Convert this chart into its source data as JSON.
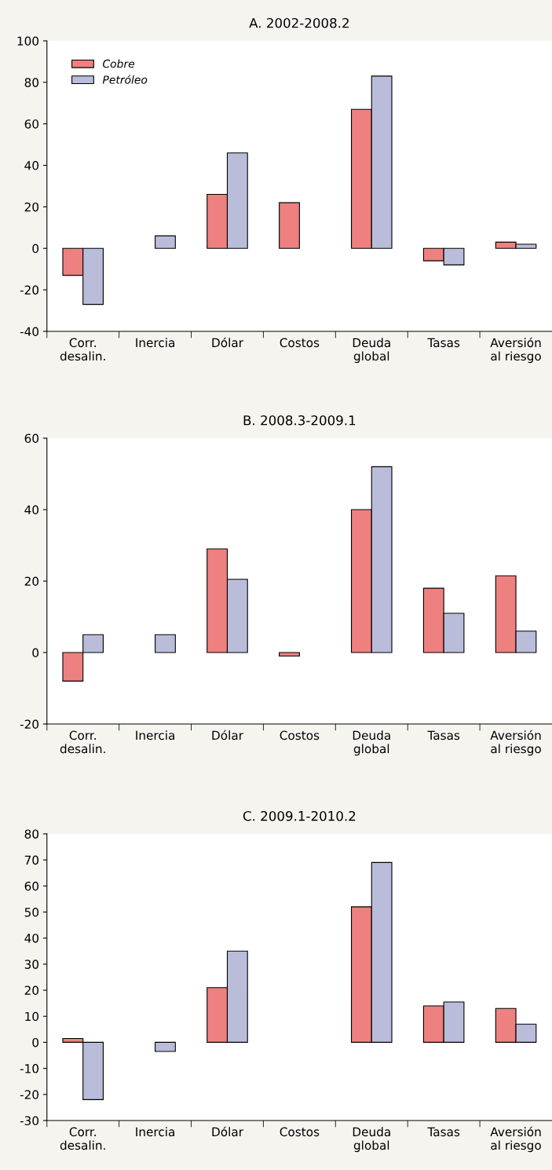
{
  "chart_data": [
    {
      "type": "bar",
      "title": "A. 2002-2008.2",
      "categories": [
        "Corr.\ndesalin.",
        "Inercia",
        "Dólar",
        "Costos",
        "Deuda\nglobal",
        "Tasas",
        "Aversión\nal riesgo"
      ],
      "series": [
        {
          "name": "Cobre",
          "color": "#ee8080",
          "values": [
            -13,
            null,
            26,
            22,
            67,
            -6,
            3
          ]
        },
        {
          "name": "Petróleo",
          "color": "#babdd9",
          "values": [
            -27,
            6,
            46,
            null,
            83,
            -8,
            2
          ]
        }
      ],
      "ylim": [
        -40,
        100
      ],
      "yticks": [
        -40,
        -20,
        0,
        20,
        40,
        60,
        80,
        100
      ],
      "legend": "top left",
      "grid": false
    },
    {
      "type": "bar",
      "title": "B. 2008.3-2009.1",
      "categories": [
        "Corr.\ndesalin.",
        "Inercia",
        "Dólar",
        "Costos",
        "Deuda\nglobal",
        "Tasas",
        "Aversión\nal riesgo"
      ],
      "series": [
        {
          "color": "#ee8080",
          "values": [
            -8,
            null,
            29,
            -1,
            40,
            18,
            21.5
          ]
        },
        {
          "color": "#babdd9",
          "values": [
            5,
            5,
            20.5,
            null,
            52,
            11,
            6
          ]
        }
      ],
      "ylim": [
        -20,
        60
      ],
      "yticks": [
        -20,
        0,
        20,
        40,
        60
      ],
      "legend": false,
      "grid": false
    },
    {
      "type": "bar",
      "title": "C. 2009.1-2010.2",
      "categories": [
        "Corr.\ndesalin.",
        "Inercia",
        "Dólar",
        "Costos",
        "Deuda\nglobal",
        "Tasas",
        "Aversión\nal riesgo"
      ],
      "series": [
        {
          "color": "#ee8080",
          "values": [
            1.5,
            null,
            21,
            null,
            52,
            14,
            13
          ]
        },
        {
          "color": "#babdd9",
          "values": [
            -22,
            -3.5,
            35,
            null,
            69,
            15.5,
            7
          ]
        }
      ],
      "ylim": [
        -30,
        80
      ],
      "yticks": [
        -30,
        -20,
        -10,
        0,
        10,
        20,
        30,
        40,
        50,
        60,
        70,
        80
      ],
      "legend": false,
      "grid": false
    }
  ]
}
